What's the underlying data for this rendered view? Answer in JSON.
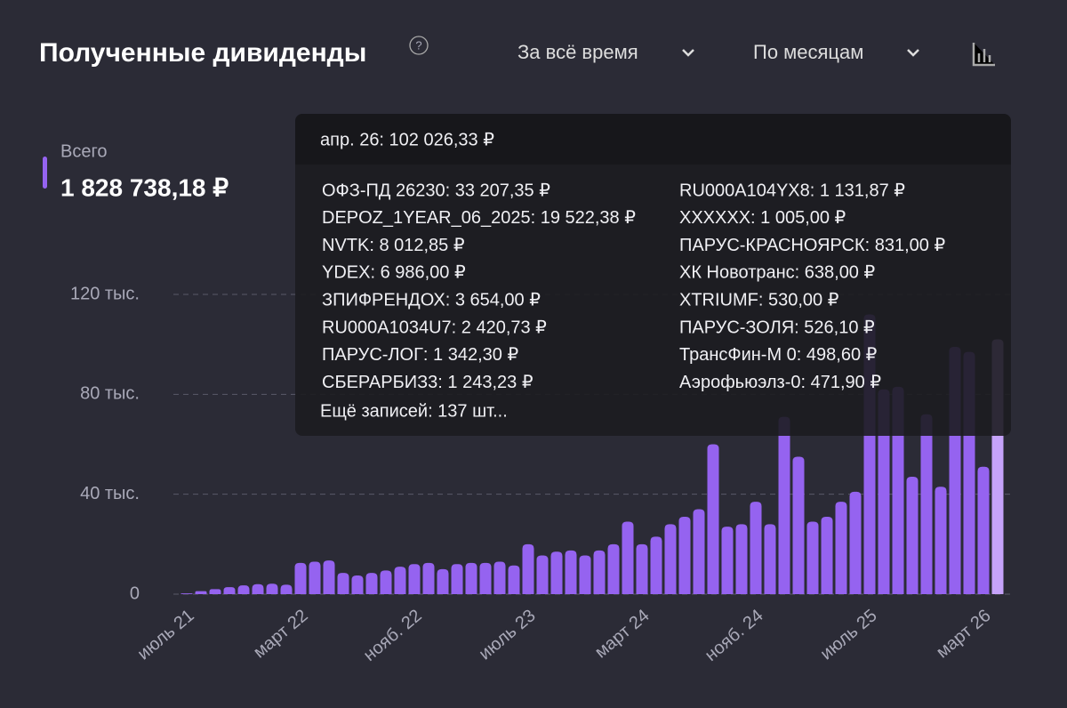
{
  "header": {
    "title": "Полученные дивиденды",
    "help": "?",
    "period": "За всё время",
    "grouping": "По месяцам"
  },
  "summary": {
    "label": "Всего",
    "total": "1 828 738,18 ₽"
  },
  "chart_data": {
    "type": "bar",
    "categories": [
      "июль 21",
      null,
      null,
      null,
      null,
      null,
      null,
      null,
      "март 22",
      null,
      null,
      null,
      null,
      null,
      null,
      null,
      "нояб. 22",
      null,
      null,
      null,
      null,
      null,
      null,
      null,
      "июль 23",
      null,
      null,
      null,
      null,
      null,
      null,
      null,
      "март 24",
      null,
      null,
      null,
      null,
      null,
      null,
      null,
      "нояб. 24",
      null,
      null,
      null,
      null,
      null,
      null,
      null,
      "июль 25",
      null,
      null,
      null,
      null,
      null,
      null,
      null,
      "март 26",
      null
    ],
    "values": [
      300,
      1200,
      2000,
      2800,
      3500,
      4000,
      4200,
      3800,
      12500,
      13000,
      13500,
      8500,
      7500,
      8500,
      9500,
      11000,
      12000,
      12500,
      10000,
      12000,
      12500,
      12500,
      13000,
      11500,
      20000,
      15500,
      17000,
      17500,
      15500,
      17500,
      20000,
      29000,
      20000,
      23000,
      28000,
      31000,
      34000,
      60000,
      27000,
      28000,
      37000,
      28000,
      71000,
      55000,
      29000,
      31000,
      37000,
      41000,
      112000,
      82000,
      83000,
      47000,
      72000,
      43000,
      99000,
      97000,
      51000,
      102026.33
    ],
    "color": "#9563f0",
    "highlight": {
      "index": 57,
      "color": "#c6a3fa"
    },
    "ylim": [
      0,
      120000
    ],
    "yticks": [
      0,
      {
        "value": 40000,
        "label": "40 тыс."
      },
      {
        "value": 80000,
        "label": "80 тыс."
      },
      {
        "value": 120000,
        "label": "120 тыс."
      }
    ],
    "grid": true
  },
  "tooltip": {
    "header": "апр. 26: 102 026,33 ₽",
    "left": [
      "ОФЗ-ПД 26230: 33 207,35 ₽",
      "DEPOZ_1YEAR_06_2025: 19 522,38 ₽",
      "NVTK: 8 012,85 ₽",
      "YDEX: 6 986,00 ₽",
      "ЗПИФРЕНДОХ: 3 654,00 ₽",
      "RU000A1034U7: 2 420,73 ₽",
      "ПАРУС-ЛОГ: 1 342,30 ₽",
      "СБЕРАРБИЗ3: 1 243,23 ₽"
    ],
    "right": [
      "RU000A104YX8: 1 131,87 ₽",
      "XXXXXX: 1 005,00 ₽",
      "ПАРУС-КРАСНОЯРСК: 831,00 ₽",
      "ХК Новотранс: 638,00 ₽",
      "XTRIUMF: 530,00 ₽",
      "ПАРУС-ЗОЛЯ: 526,10 ₽",
      "ТрансФин-М 0: 498,60 ₽",
      "Аэрофьюэлз-0: 471,90 ₽"
    ],
    "more": "Ещё записей: 137 шт..."
  }
}
